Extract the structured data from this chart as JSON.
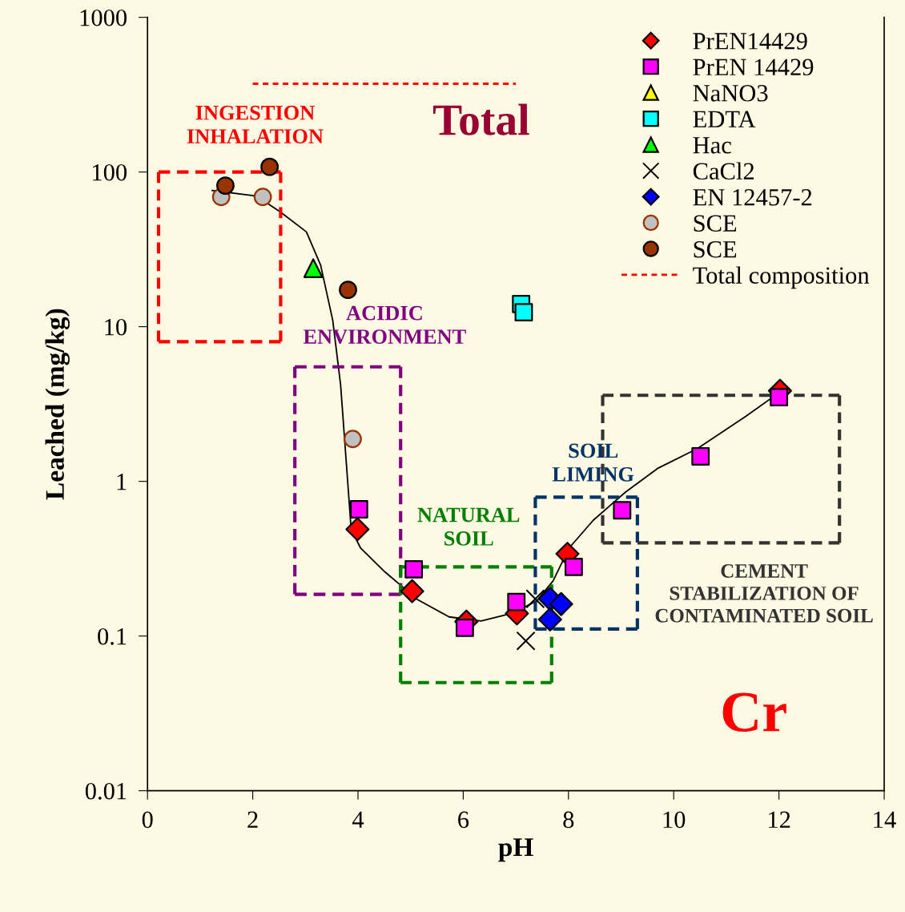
{
  "chart_data": {
    "type": "scatter",
    "xlabel": "pH",
    "ylabel": "Leached (mg/kg)",
    "log": "y",
    "xlim": [
      0,
      14
    ],
    "xticks": [
      0,
      2,
      4,
      6,
      8,
      10,
      12,
      14
    ],
    "ylim": [
      0.01,
      1000
    ],
    "yticks": [
      {
        "value": 0.01,
        "label": "0.01"
      },
      {
        "value": 0.1,
        "label": "0.1"
      },
      {
        "value": 1,
        "label": "1"
      },
      {
        "value": 10,
        "label": "10"
      },
      {
        "value": 100,
        "label": "100"
      },
      {
        "value": 1000,
        "label": "1000"
      }
    ],
    "grid": false,
    "legend": "top right",
    "series": [
      {
        "name": "PrEN14429",
        "marker": "diamond",
        "color": "#ff0000",
        "x": [
          3.99,
          5.03,
          6.06,
          7.02,
          7.98,
          12.02
        ],
        "values": [
          0.49,
          0.195,
          0.124,
          0.14,
          0.34,
          3.85
        ]
      },
      {
        "name": "PrEN 14429",
        "marker": "square",
        "color": "#ff00ff",
        "x": [
          4.02,
          5.06,
          6.03,
          7.01,
          8.1,
          9.02,
          10.51,
          12.0
        ],
        "values": [
          0.66,
          0.27,
          0.113,
          0.166,
          0.28,
          0.65,
          1.45,
          3.5
        ]
      },
      {
        "name": "NaNO3",
        "marker": "triangle",
        "color": "#ffff00",
        "x": [
          null
        ],
        "values": [
          null
        ]
      },
      {
        "name": "EDTA",
        "marker": "square",
        "color": "#00ffff",
        "x": [
          7.1,
          7.15
        ],
        "values": [
          14,
          12.4
        ]
      },
      {
        "name": "Hac",
        "marker": "triangle",
        "color": "#00ff00",
        "x": [
          3.15
        ],
        "values": [
          23.9
        ]
      },
      {
        "name": "CaCl2",
        "marker": "cross",
        "color": "#000000",
        "x": [
          7.19,
          7.37
        ],
        "values": [
          0.093,
          0.174
        ]
      },
      {
        "name": "EN 12457-2",
        "marker": "diamond",
        "color": "#0000ff",
        "x": [
          7.65,
          7.86,
          7.65
        ],
        "values": [
          0.174,
          0.161,
          0.128
        ]
      },
      {
        "name": "SCE",
        "marker": "circle",
        "color": "#c0c0c0",
        "x": [
          1.4,
          2.19,
          3.9
        ],
        "values": [
          69,
          69,
          1.88
        ]
      },
      {
        "name": "SCE",
        "marker": "circle",
        "color": "#993300",
        "x": [
          1.48,
          2.32,
          3.81
        ],
        "values": [
          81.7,
          108,
          17.3
        ]
      },
      {
        "name": "Total composition",
        "type": "line",
        "marker": "none",
        "line_style": "dashed",
        "color": "#ff0000",
        "x": [
          2.0,
          7.0
        ],
        "values": [
          372,
          372
        ]
      },
      {
        "type": "line",
        "marker": "none",
        "line_style": "solid",
        "color": "#000000",
        "x": [
          1.23,
          2.07,
          2.53,
          3.02,
          3.29,
          3.52,
          3.67,
          3.78,
          3.87,
          4.05,
          4.51,
          5.12,
          5.73,
          6.34,
          6.95,
          7.4,
          7.71,
          8.01,
          8.47,
          9.08,
          9.69,
          10.45,
          11.37,
          12.05
        ],
        "values": [
          76,
          70,
          55,
          41,
          25,
          11,
          4.2,
          1.29,
          0.49,
          0.37,
          0.26,
          0.173,
          0.133,
          0.125,
          0.141,
          0.169,
          0.228,
          0.37,
          0.56,
          0.85,
          1.21,
          1.63,
          2.63,
          3.85
        ]
      },
      {
        "type": "line",
        "marker": "none",
        "line_style": "dashed",
        "color": "#ff0000",
        "x": [
          0.21,
          0.21,
          2.53,
          2.53
        ],
        "values": [
          8,
          100,
          100,
          8
        ]
      },
      {
        "type": "line",
        "marker": "none",
        "line_style": "dashed",
        "color": "#ff0000",
        "x": [
          0.21,
          2.53
        ],
        "values": [
          8,
          8
        ]
      },
      {
        "type": "line",
        "marker": "none",
        "line_style": "dashed",
        "color": "#800080",
        "x": [
          2.8,
          4.81
        ],
        "values": [
          0.186,
          0.186
        ]
      },
      {
        "type": "line",
        "marker": "none",
        "line_style": "dashed",
        "color": "#800080",
        "x": [
          2.8,
          2.8,
          4.81,
          4.81
        ],
        "values": [
          0.186,
          5.5,
          5.5,
          0.186
        ]
      },
      {
        "type": "line",
        "marker": "none",
        "line_style": "dashed",
        "color": "#008000",
        "x": [
          4.81,
          4.81,
          7.68,
          7.68
        ],
        "values": [
          0.05,
          0.28,
          0.28,
          0.05
        ]
      },
      {
        "type": "line",
        "marker": "none",
        "line_style": "dashed",
        "color": "#008000",
        "x": [
          4.81,
          7.68
        ],
        "values": [
          0.05,
          0.05
        ]
      },
      {
        "type": "line",
        "marker": "none",
        "line_style": "dashed",
        "color": "#003366",
        "x": [
          7.37,
          9.31
        ],
        "values": [
          0.111,
          0.111
        ]
      },
      {
        "type": "line",
        "marker": "none",
        "line_style": "dashed",
        "color": "#003366",
        "x": [
          7.37,
          7.37,
          9.31,
          9.31
        ],
        "values": [
          0.111,
          0.79,
          0.79,
          0.111
        ]
      },
      {
        "type": "line",
        "marker": "none",
        "line_style": "dashed",
        "color": "#333333",
        "x": [
          8.65,
          8.65,
          13.15,
          13.15
        ],
        "values": [
          0.4,
          3.6,
          3.6,
          0.4
        ]
      },
      {
        "type": "line",
        "marker": "none",
        "line_style": "dashed",
        "color": "#333333",
        "x": [
          8.65,
          13.15
        ],
        "values": [
          0.4,
          0.4
        ]
      }
    ],
    "annotations": [
      "INGESTION\nINHALATION",
      "Total",
      "ACIDIC\nENVIRONMENT",
      "NATURAL\nSOIL",
      "SOIL\nLIMING",
      "CEMENT\nSTABILIZATION OF\nCONTAMINATED SOIL",
      "Cr"
    ]
  }
}
